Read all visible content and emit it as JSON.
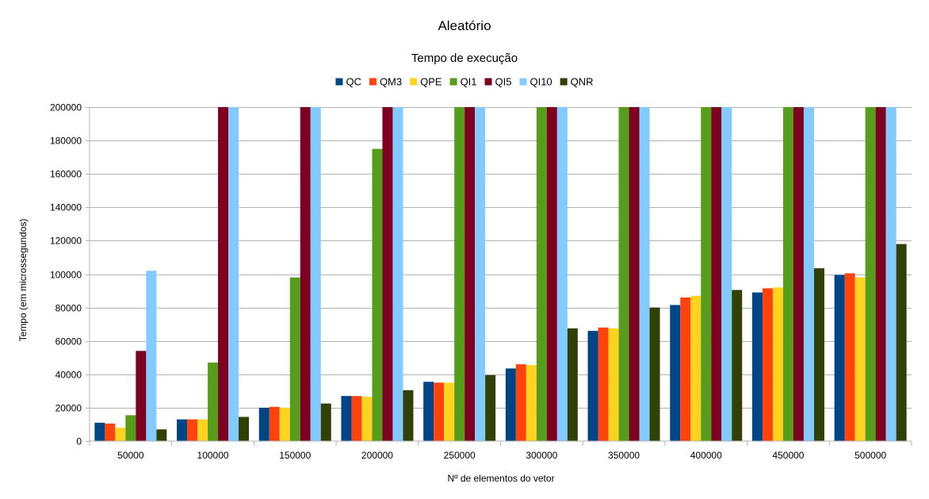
{
  "chart_data": {
    "type": "bar",
    "title": "Aleatório",
    "subtitle": "Tempo de execução",
    "xlabel": "Nº de elementos do vetor",
    "ylabel": "Tempo (em microssegundos)",
    "ylim": [
      0,
      200000
    ],
    "yticks": [
      0,
      20000,
      40000,
      60000,
      80000,
      100000,
      120000,
      140000,
      160000,
      180000,
      200000
    ],
    "grid": true,
    "legend_position": "top",
    "categories": [
      "50000",
      "100000",
      "150000",
      "200000",
      "250000",
      "300000",
      "350000",
      "400000",
      "450000",
      "500000"
    ],
    "series": [
      {
        "name": "QC",
        "color": "#004586",
        "values": [
          11000,
          13000,
          20000,
          27000,
          35500,
          43500,
          66000,
          81500,
          89000,
          99500
        ]
      },
      {
        "name": "QM3",
        "color": "#ff420e",
        "values": [
          10500,
          13000,
          20500,
          27000,
          35000,
          46000,
          68000,
          86000,
          91500,
          100500
        ]
      },
      {
        "name": "QPE",
        "color": "#ffd320",
        "values": [
          8000,
          13000,
          20000,
          26500,
          35000,
          45500,
          67500,
          87000,
          92000,
          98000
        ]
      },
      {
        "name": "QI1",
        "color": "#579d1c",
        "values": [
          15500,
          47000,
          98000,
          175000,
          200000,
          200000,
          200000,
          200000,
          200000,
          200000
        ]
      },
      {
        "name": "QI5",
        "color": "#7e0021",
        "values": [
          54000,
          200000,
          200000,
          200000,
          200000,
          200000,
          200000,
          200000,
          200000,
          200000
        ]
      },
      {
        "name": "QI10",
        "color": "#83caff",
        "values": [
          102000,
          200000,
          200000,
          200000,
          200000,
          200000,
          200000,
          200000,
          200000,
          200000
        ]
      },
      {
        "name": "QNR",
        "color": "#314004",
        "values": [
          7000,
          14500,
          22500,
          30500,
          39500,
          67500,
          80000,
          90500,
          103500,
          118000
        ]
      }
    ]
  }
}
